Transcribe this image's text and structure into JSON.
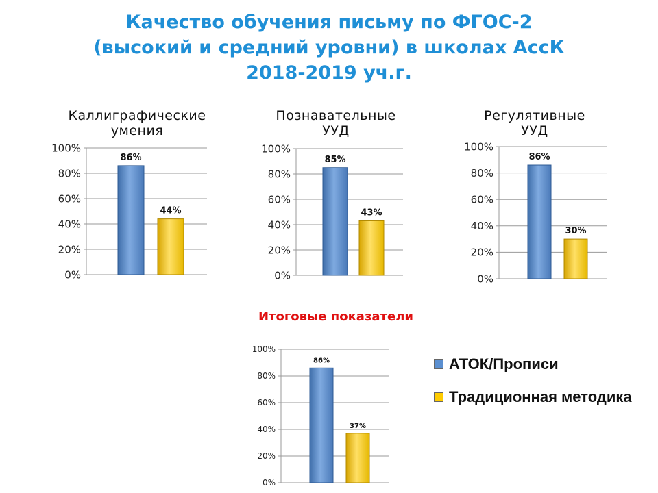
{
  "title": {
    "lines": [
      "Качество обучения письму по ФГОС-2",
      "(высокий и средний уровни) в школах АссК",
      "2018-2019 уч.г."
    ]
  },
  "summary_title": "Итоговые показатели",
  "legend": [
    {
      "label": "АТОК/Прописи",
      "color": "#5b8fd0"
    },
    {
      "label": "Традиционная методика",
      "color": "#ffcc00"
    }
  ],
  "chart_data": [
    {
      "type": "bar",
      "title_lines": [
        "Каллиграфические",
        "умения"
      ],
      "categories": [
        "АТОК/Прописи",
        "Традиционная методика"
      ],
      "values": [
        86,
        44
      ],
      "value_labels": [
        "86%",
        "44%"
      ],
      "yticks": [
        "0%",
        "20%",
        "40%",
        "60%",
        "80%",
        "100%"
      ],
      "ylim": [
        0,
        100
      ],
      "grid": true
    },
    {
      "type": "bar",
      "title_lines": [
        "Познавательные",
        "УУД"
      ],
      "categories": [
        "АТОК/Прописи",
        "Традиционная методика"
      ],
      "values": [
        85,
        43
      ],
      "value_labels": [
        "85%",
        "43%"
      ],
      "yticks": [
        "0%",
        "20%",
        "40%",
        "60%",
        "80%",
        "100%"
      ],
      "ylim": [
        0,
        100
      ],
      "grid": true
    },
    {
      "type": "bar",
      "title_lines": [
        "Регулятивные",
        "УУД"
      ],
      "categories": [
        "АТОК/Прописи",
        "Традиционная методика"
      ],
      "values": [
        86,
        30
      ],
      "value_labels": [
        "86%",
        "30%"
      ],
      "yticks": [
        "0%",
        "20%",
        "40%",
        "60%",
        "80%",
        "100%"
      ],
      "ylim": [
        0,
        100
      ],
      "grid": true
    },
    {
      "type": "bar",
      "title_lines": [],
      "categories": [
        "АТОК/Прописи",
        "Традиционная методика"
      ],
      "values": [
        86,
        37
      ],
      "value_labels": [
        "86%",
        "37%"
      ],
      "yticks": [
        "0%",
        "20%",
        "40%",
        "60%",
        "80%",
        "100%"
      ],
      "ylim": [
        0,
        100
      ],
      "grid": true
    }
  ]
}
